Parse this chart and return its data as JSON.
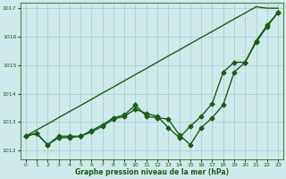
{
  "xlabel": "Graphe pression niveau de la mer (hPa)",
  "ylim": [
    1011.7,
    1017.2
  ],
  "xlim": [
    -0.5,
    23.5
  ],
  "yticks": [
    1012,
    1013,
    1014,
    1015,
    1016,
    1017
  ],
  "xticks": [
    0,
    1,
    2,
    3,
    4,
    5,
    6,
    7,
    8,
    9,
    10,
    11,
    12,
    13,
    14,
    15,
    16,
    17,
    18,
    19,
    20,
    21,
    22,
    23
  ],
  "bg_color": "#ceeaea",
  "grid_color": "#9ecece",
  "line_color": "#1a5c1a",
  "line_straight": [
    1012.5,
    1012.72,
    1012.93,
    1013.15,
    1013.37,
    1013.58,
    1013.8,
    1014.02,
    1014.23,
    1014.45,
    1014.67,
    1014.88,
    1015.1,
    1015.32,
    1015.53,
    1015.75,
    1015.97,
    1016.18,
    1016.4,
    1016.62,
    1016.83,
    1017.05,
    1017.0,
    1017.0
  ],
  "line_wavy": [
    1012.5,
    1012.6,
    1012.2,
    1012.5,
    1012.5,
    1012.5,
    1012.7,
    1012.9,
    1013.15,
    1013.25,
    1013.6,
    1013.2,
    1013.15,
    1013.1,
    1012.55,
    1012.2,
    1012.8,
    1013.15,
    1013.6,
    1014.75,
    1015.1,
    1015.8,
    1016.35,
    1016.85
  ],
  "line_mid": [
    1012.5,
    1012.6,
    1012.2,
    1012.45,
    1012.45,
    1012.5,
    1012.65,
    1012.85,
    1013.1,
    1013.2,
    1013.45,
    1013.3,
    1013.2,
    1012.8,
    1012.45,
    1012.85,
    1013.2,
    1013.65,
    1014.75,
    1015.1,
    1015.1,
    1015.85,
    1016.4,
    1016.85
  ],
  "marker": "D",
  "markersize": 2.5,
  "linewidth": 1.0,
  "straight_linewidth": 1.0
}
